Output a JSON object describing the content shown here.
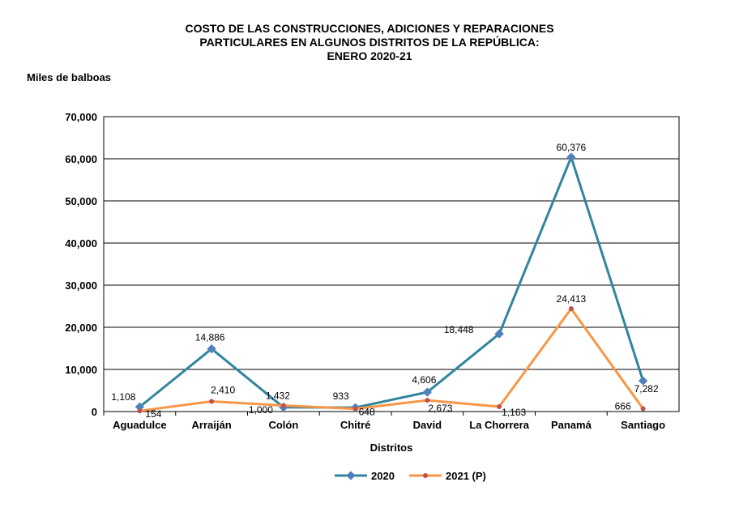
{
  "chart_data": {
    "type": "line",
    "title": [
      "COSTO DE LAS CONSTRUCCIONES, ADICIONES Y REPARACIONES",
      "PARTICULARES EN ALGUNOS DISTRITOS DE LA REPÚBLICA:",
      "ENERO 2020-21"
    ],
    "ylabel": "Miles de balboas",
    "xlabel": "Distritos",
    "ylim": [
      0,
      70000
    ],
    "yticks": [
      "0",
      "10,000",
      "20,000",
      "30,000",
      "40,000",
      "50,000",
      "60,000",
      "70,000"
    ],
    "grid": true,
    "legend_position": "bottom",
    "categories": [
      "Aguadulce",
      "Arraiján",
      "Colón",
      "Chitré",
      "David",
      "La Chorrera",
      "Panamá",
      "Santiago"
    ],
    "series": [
      {
        "name": "2020",
        "color": "#31859C",
        "values": [
          1108,
          14886,
          1000,
          933,
          4606,
          18448,
          60376,
          7282
        ],
        "labels": [
          "1,108",
          "14,886",
          "1,000",
          "933",
          "4,606",
          "18,448",
          "60,376",
          "7,282"
        ]
      },
      {
        "name": "2021 (P)",
        "color": "#F79646",
        "values": [
          154,
          2410,
          1432,
          648,
          2673,
          1163,
          24413,
          666
        ],
        "labels": [
          "154",
          "2,410",
          "1,432",
          "648",
          "2,673",
          "1,163",
          "24,413",
          "666"
        ]
      }
    ]
  }
}
